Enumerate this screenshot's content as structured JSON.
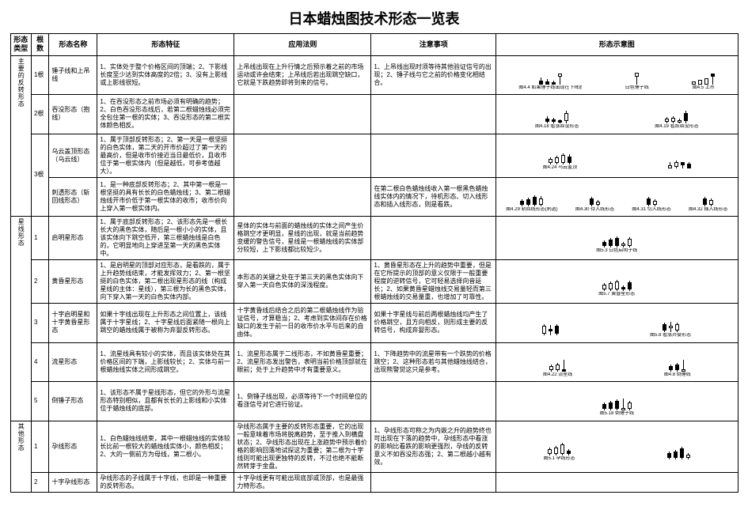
{
  "title": "日本蜡烛图技术形态一览表",
  "columns": {
    "type": "形态类型",
    "count": "根数",
    "name": "形态名称",
    "features": "形态特征",
    "application": "应用法则",
    "notes": "注意事项",
    "diagram": "形态示意图"
  },
  "groups": [
    {
      "type_label": "主要的反转形态",
      "rows": [
        {
          "count": "1根",
          "name": "锤子线和上吊线",
          "features": "1、实体处于整个价格区间的顶端；2、下影线长度至少达到实体高度的2倍；3、没有上影线或上影线很短。",
          "application": "上吊线出现在上升行情之后预示着之前的市场运动或许会结束；上吊线后若出现跳空缺口，它就是下跌趋势即将到来的信号。",
          "notes": "1、上吊线出现时须等待其他验证信号的出现；2、锤子线与它之前的价格变化相结合。",
          "panels": [
            {
              "caption": "图4.4 如果锤子线出现在下降趋势之后",
              "candles": [
                {
                  "uw": 4,
                  "bh": 5,
                  "lw": 0,
                  "f": true
                },
                {
                  "uw": 3,
                  "bh": 4,
                  "lw": 0,
                  "f": true
                },
                {
                  "uw": 2,
                  "bh": 3,
                  "lw": 0,
                  "f": true
                },
                {
                  "uw": 0,
                  "bh": 4,
                  "lw": 10,
                  "f": false
                }
              ]
            },
            {
              "caption": "白色锤子线",
              "candles": [
                {
                  "uw": 0,
                  "bh": 5,
                  "lw": 10,
                  "f": false
                }
              ]
            },
            {
              "caption": "图4.5 上吊",
              "candles": [
                {
                  "uw": 0,
                  "bh": 4,
                  "lw": 0,
                  "f": false
                },
                {
                  "uw": 0,
                  "bh": 6,
                  "lw": 0,
                  "f": false
                },
                {
                  "uw": 0,
                  "bh": 8,
                  "lw": 0,
                  "f": false
                },
                {
                  "uw": 0,
                  "bh": 4,
                  "lw": 10,
                  "f": true
                }
              ]
            }
          ]
        },
        {
          "count": "2根",
          "name": "吞没形态（抱线）",
          "features": "1、在吞没形态之前市场必须有明确的趋势；2、白色吞没形态线后，若第二根蜡烛线必须完全包住第一根的实体；3、吞没形态的第二根实体颜色相反。",
          "application": "",
          "notes": "",
          "panels": [
            {
              "caption": "图4.18 看涨吞没形态",
              "candles": [
                {
                  "uw": 3,
                  "bh": 4,
                  "lw": 2,
                  "f": true
                },
                {
                  "uw": 2,
                  "bh": 3,
                  "lw": 2,
                  "f": true
                },
                {
                  "uw": 1,
                  "bh": 3,
                  "lw": 1,
                  "f": true
                },
                {
                  "uw": 3,
                  "bh": 10,
                  "lw": 3,
                  "f": false
                }
              ]
            },
            {
              "caption": "图4.19 看跌吞没形态",
              "candles": [
                {
                  "uw": 2,
                  "bh": 4,
                  "lw": 2,
                  "f": false
                },
                {
                  "uw": 2,
                  "bh": 5,
                  "lw": 2,
                  "f": false
                },
                {
                  "uw": 2,
                  "bh": 3,
                  "lw": 1,
                  "f": false
                },
                {
                  "uw": 3,
                  "bh": 10,
                  "lw": 3,
                  "f": true
                }
              ]
            }
          ]
        },
        {
          "count_rowspan": 2,
          "count": "3根",
          "name": "乌云盖顶形态（乌云线）",
          "features": "1、属于顶部反转形态；2、第一天是一根坚挺的白色实体，第二天的开市价超过了第一天的最高价，但是收市价接近当日最低价，且收市位于第一根实体内（但是越低，可参考值越大）。",
          "application": "",
          "notes": "",
          "panels": [
            {
              "caption": "图4.24 乌云盖顶",
              "candles": [
                {
                  "uw": 2,
                  "bh": 5,
                  "lw": 2,
                  "f": false
                },
                {
                  "uw": 2,
                  "bh": 7,
                  "lw": 2,
                  "f": false
                },
                {
                  "uw": 2,
                  "bh": 10,
                  "lw": 2,
                  "f": false
                },
                {
                  "uw": 3,
                  "bh": 8,
                  "lw": 2,
                  "f": true
                }
              ]
            },
            {
              "caption": "",
              "candles": [
                {
                  "uw": 4,
                  "bh": 4,
                  "lw": 0,
                  "f": false
                },
                {
                  "uw": 2,
                  "bh": 6,
                  "lw": 2,
                  "f": false
                },
                {
                  "uw": 0,
                  "bh": 4,
                  "lw": 4,
                  "f": true
                },
                {
                  "uw": 2,
                  "bh": 6,
                  "lw": 0,
                  "f": true
                }
              ]
            }
          ]
        },
        {
          "name": "刺透形态（斩回线形态）",
          "features": "1、是一种底部反转形态；2、其中第一根是一根坚挺的具有长长的白色蜡烛线；3、第二根蜡烛线开市价低于第一根实体的收市；收市价向上穿入第一根实体内。",
          "application": "",
          "notes": "在第二根白色蜡烛线收入第一根黑色蜡烛线实体内的情况下，待机形态、切入线形态和插入线形态，则是看跌。",
          "panels": [
            {
              "caption": "图4.29 斩回线形态(刺透)",
              "candles": [
                {
                  "uw": 2,
                  "bh": 5,
                  "lw": 2,
                  "f": true
                },
                {
                  "uw": 2,
                  "bh": 7,
                  "lw": 2,
                  "f": true
                },
                {
                  "uw": 2,
                  "bh": 10,
                  "lw": 2,
                  "f": true
                },
                {
                  "uw": 3,
                  "bh": 8,
                  "lw": 2,
                  "f": false
                }
              ]
            },
            {
              "caption": "图4.30 待入线形态",
              "candles": [
                {
                  "uw": 2,
                  "bh": 8,
                  "lw": 2,
                  "f": true
                },
                {
                  "uw": 2,
                  "bh": 4,
                  "lw": 2,
                  "f": false
                }
              ]
            },
            {
              "caption": "图4.31 切入线形态",
              "candles": [
                {
                  "uw": 2,
                  "bh": 8,
                  "lw": 2,
                  "f": true
                },
                {
                  "uw": 2,
                  "bh": 5,
                  "lw": 2,
                  "f": false
                }
              ]
            },
            {
              "caption": "图4.32 插入线形态",
              "candles": [
                {
                  "uw": 2,
                  "bh": 8,
                  "lw": 2,
                  "f": true
                },
                {
                  "uw": 2,
                  "bh": 6,
                  "lw": 2,
                  "f": false
                }
              ]
            }
          ]
        }
      ]
    },
    {
      "type_label": "星线形态",
      "rows": [
        {
          "count": "1",
          "name": "启明星形态",
          "features": "1、属于底部反转形态；2、该形态先是一根长长大的黑色实体，随后是一根小小的实体，且该实体向下跳空低开，第三根蜡烛线是白色的，它明显地向上穿进至第一天的黑色实体中。",
          "application": "星体的实体与前面的蜡烛线的实体之间产生价格跳空才更明显，星线的出现，就是当前趋势变缓的警告信号，星线是一根蜡烛线的实体部分较短，上下影线都比较短少。",
          "notes": "",
          "panels": [
            {
              "caption": "图5.3 白色启明子线",
              "candles": [
                {
                  "uw": 2,
                  "bh": 5,
                  "lw": 2,
                  "f": true
                },
                {
                  "uw": 2,
                  "bh": 8,
                  "lw": 2,
                  "f": true
                },
                {
                  "uw": 2,
                  "bh": 10,
                  "lw": 2,
                  "f": true
                },
                {
                  "uw": 2,
                  "bh": 3,
                  "lw": 2,
                  "f": false
                },
                {
                  "uw": 2,
                  "bh": 9,
                  "lw": 2,
                  "f": false
                }
              ]
            }
          ]
        },
        {
          "count": "2",
          "name": "黄昏星形态",
          "features": "1、是启明星的顶部对应形态，是看跌的，属于上升趋势线结束，才能发挥效力；2、第一根坚挺的白色实体，第二根出现星形态的线（构成星线的主体：星线），第三根为长的黑色实体，向下穿入第一天的白色实体内部。",
          "application": "本形态的关键之处在于第三天的黑色实体向下穿入第一天白色实体的深浅程度。",
          "notes": "1、黄昏星形态在上升的趋势中重要，但是在它所提示的顶部的意义仅限于一般重要程度的逆转信号，它可轻易选择向音延长；2、如果黄昏星蜡烛线交易量轻而第三根蜡烛线的交易量重，也增加了可靠性。",
          "panels": [
            {
              "caption": "图5.7 黄昏星形态",
              "candles": [
                {
                  "uw": 2,
                  "bh": 6,
                  "lw": 2,
                  "f": false
                },
                {
                  "uw": 2,
                  "bh": 8,
                  "lw": 2,
                  "f": false
                },
                {
                  "uw": 2,
                  "bh": 10,
                  "lw": 2,
                  "f": false
                },
                {
                  "uw": 2,
                  "bh": 3,
                  "lw": 2,
                  "f": true
                },
                {
                  "uw": 2,
                  "bh": 9,
                  "lw": 2,
                  "f": true
                }
              ]
            }
          ]
        },
        {
          "count": "3",
          "name": "十字启明星和十字黄昏星形态",
          "features": "如果十字线出现在上升形态之间位置上，该线属于十字星线；2、十字星线后面紧随一根向上跳空的蜡烛线属于被称为弃婴反转形态。",
          "application": "十字黄昏线后结合之后的第二根蜡烛线作为验证信号，才算稳当；2、考虑到实体间存在价格缺口的发生于前一日的收市价水平与后来的自由体。",
          "notes": "如果十字星线与前后两根蜡烛线均产生了价格跳空，且方向相反，则形成主要的反转信号，构成弃婴形态。",
          "panels": [
            {
              "caption": "",
              "candles": [
                {
                  "uw": 2,
                  "bh": 10,
                  "lw": 2,
                  "f": false
                },
                {
                  "uw": 5,
                  "bh": 1,
                  "lw": 5,
                  "f": true
                },
                {
                  "uw": 2,
                  "bh": 10,
                  "lw": 2,
                  "f": true
                }
              ]
            },
            {
              "caption": "图5.8 看涨弃婴形态",
              "candles": [
                {
                  "uw": 2,
                  "bh": 8,
                  "lw": 2,
                  "f": true
                },
                {
                  "uw": 5,
                  "bh": 1,
                  "lw": 5,
                  "f": false
                },
                {
                  "uw": 2,
                  "bh": 8,
                  "lw": 2,
                  "f": false
                }
              ]
            }
          ]
        },
        {
          "count": "4",
          "name": "流星形态",
          "features": "1、流星线具有较小的实体，而且该实体处在其价格区间的下端，上影线较长；2、实体与前一根蜡烛线实体之间形成跳空。",
          "application": "1、流星形态属于二线形态，不如黄昏星重要；2、流星形态发出警告，表明当前价格顶部就在眼前；处于上升趋势中才有重要意义。",
          "notes": "1、下降趋势中的流星带有一个跌势的价格跳空；2、这种形态若与其他蜡烛线结合，出现熊警觉这只是参考。",
          "panels": [
            {
              "caption": "图4.22 流星线",
              "candles": [
                {
                  "uw": 2,
                  "bh": 5,
                  "lw": 2,
                  "f": false
                },
                {
                  "uw": 2,
                  "bh": 7,
                  "lw": 2,
                  "f": false
                },
                {
                  "uw": 12,
                  "bh": 3,
                  "lw": 0,
                  "f": true
                }
              ]
            },
            {
              "caption": "图4.8 倒锤线",
              "candles": [
                {
                  "uw": 2,
                  "bh": 5,
                  "lw": 2,
                  "f": true
                },
                {
                  "uw": 2,
                  "bh": 7,
                  "lw": 2,
                  "f": true
                },
                {
                  "uw": 12,
                  "bh": 3,
                  "lw": 0,
                  "f": false
                }
              ]
            }
          ]
        },
        {
          "count": "5",
          "name": "倒锤子形态",
          "features": "1、该形态不属于星线形态，但它的外形与流星形态特别相似，且都有长长的上影线和小实体位于蜡烛线的底部。",
          "application": "1、倒锤子线出现，必须等待下一个时间单位的看涨信号对它进行验证。",
          "notes": "",
          "panels": [
            {
              "caption": "图5.18 倒锤子线",
              "candles": [
                {
                  "uw": 2,
                  "bh": 6,
                  "lw": 2,
                  "f": true
                },
                {
                  "uw": 2,
                  "bh": 8,
                  "lw": 2,
                  "f": true
                },
                {
                  "uw": 2,
                  "bh": 10,
                  "lw": 2,
                  "f": true
                },
                {
                  "uw": 12,
                  "bh": 3,
                  "lw": 0,
                  "f": false
                },
                {
                  "uw": 2,
                  "bh": 8,
                  "lw": 2,
                  "f": false
                }
              ]
            }
          ]
        }
      ]
    },
    {
      "type_label": "其他形态",
      "rows": [
        {
          "count": "1",
          "name": "孕线形态",
          "features": "1、白色蜡烛线结束，其中一根蜡烛线的实体较长比前一根较大的蜡烛线实体小，颜色相反；2、大的一侧前方为母线，第二根小。",
          "application": "孕线形态属于主要的反转形态重要，它的出现一般意味着市场将脱离趋势，至于推入到横盘状态；2、孕线形态出现在上涨趋势中预示着价格的影响回落地试探这为重要；第二根为十字线则可能出现更独特的反转，不过也绝不能断然转芽于金盘。",
          "notes": "1、孕线形态可称之为内嵌之升的趋势终也可出现在下落的趋势中，孕线形态中看涨的影响比看跌的影响更强烈，孕线的反转意义不如吞没形态强；2、第二根越小越有效。",
          "panels": [
            {
              "caption": "图5.1 孕线形态",
              "candles": [
                {
                  "uw": 2,
                  "bh": 6,
                  "lw": 2,
                  "f": false
                },
                {
                  "uw": 2,
                  "bh": 8,
                  "lw": 2,
                  "f": false
                },
                {
                  "uw": 2,
                  "bh": 12,
                  "lw": 2,
                  "f": false
                },
                {
                  "uw": 2,
                  "bh": 4,
                  "lw": 2,
                  "f": true
                }
              ]
            },
            {
              "caption": "",
              "candles": [
                {
                  "uw": 2,
                  "bh": 6,
                  "lw": 2,
                  "f": true
                },
                {
                  "uw": 2,
                  "bh": 8,
                  "lw": 2,
                  "f": true
                },
                {
                  "uw": 2,
                  "bh": 12,
                  "lw": 2,
                  "f": true
                },
                {
                  "uw": 2,
                  "bh": 4,
                  "lw": 2,
                  "f": false
                }
              ]
            }
          ]
        },
        {
          "count": "2",
          "name": "十字孕线形态",
          "features": "孕线形态的子线属于十字线，也即是一种重要的反转形态。",
          "application": "十字孕线更有可能出现底部或顶部，也是最强力特形态。",
          "notes": "",
          "panels": []
        }
      ]
    }
  ]
}
